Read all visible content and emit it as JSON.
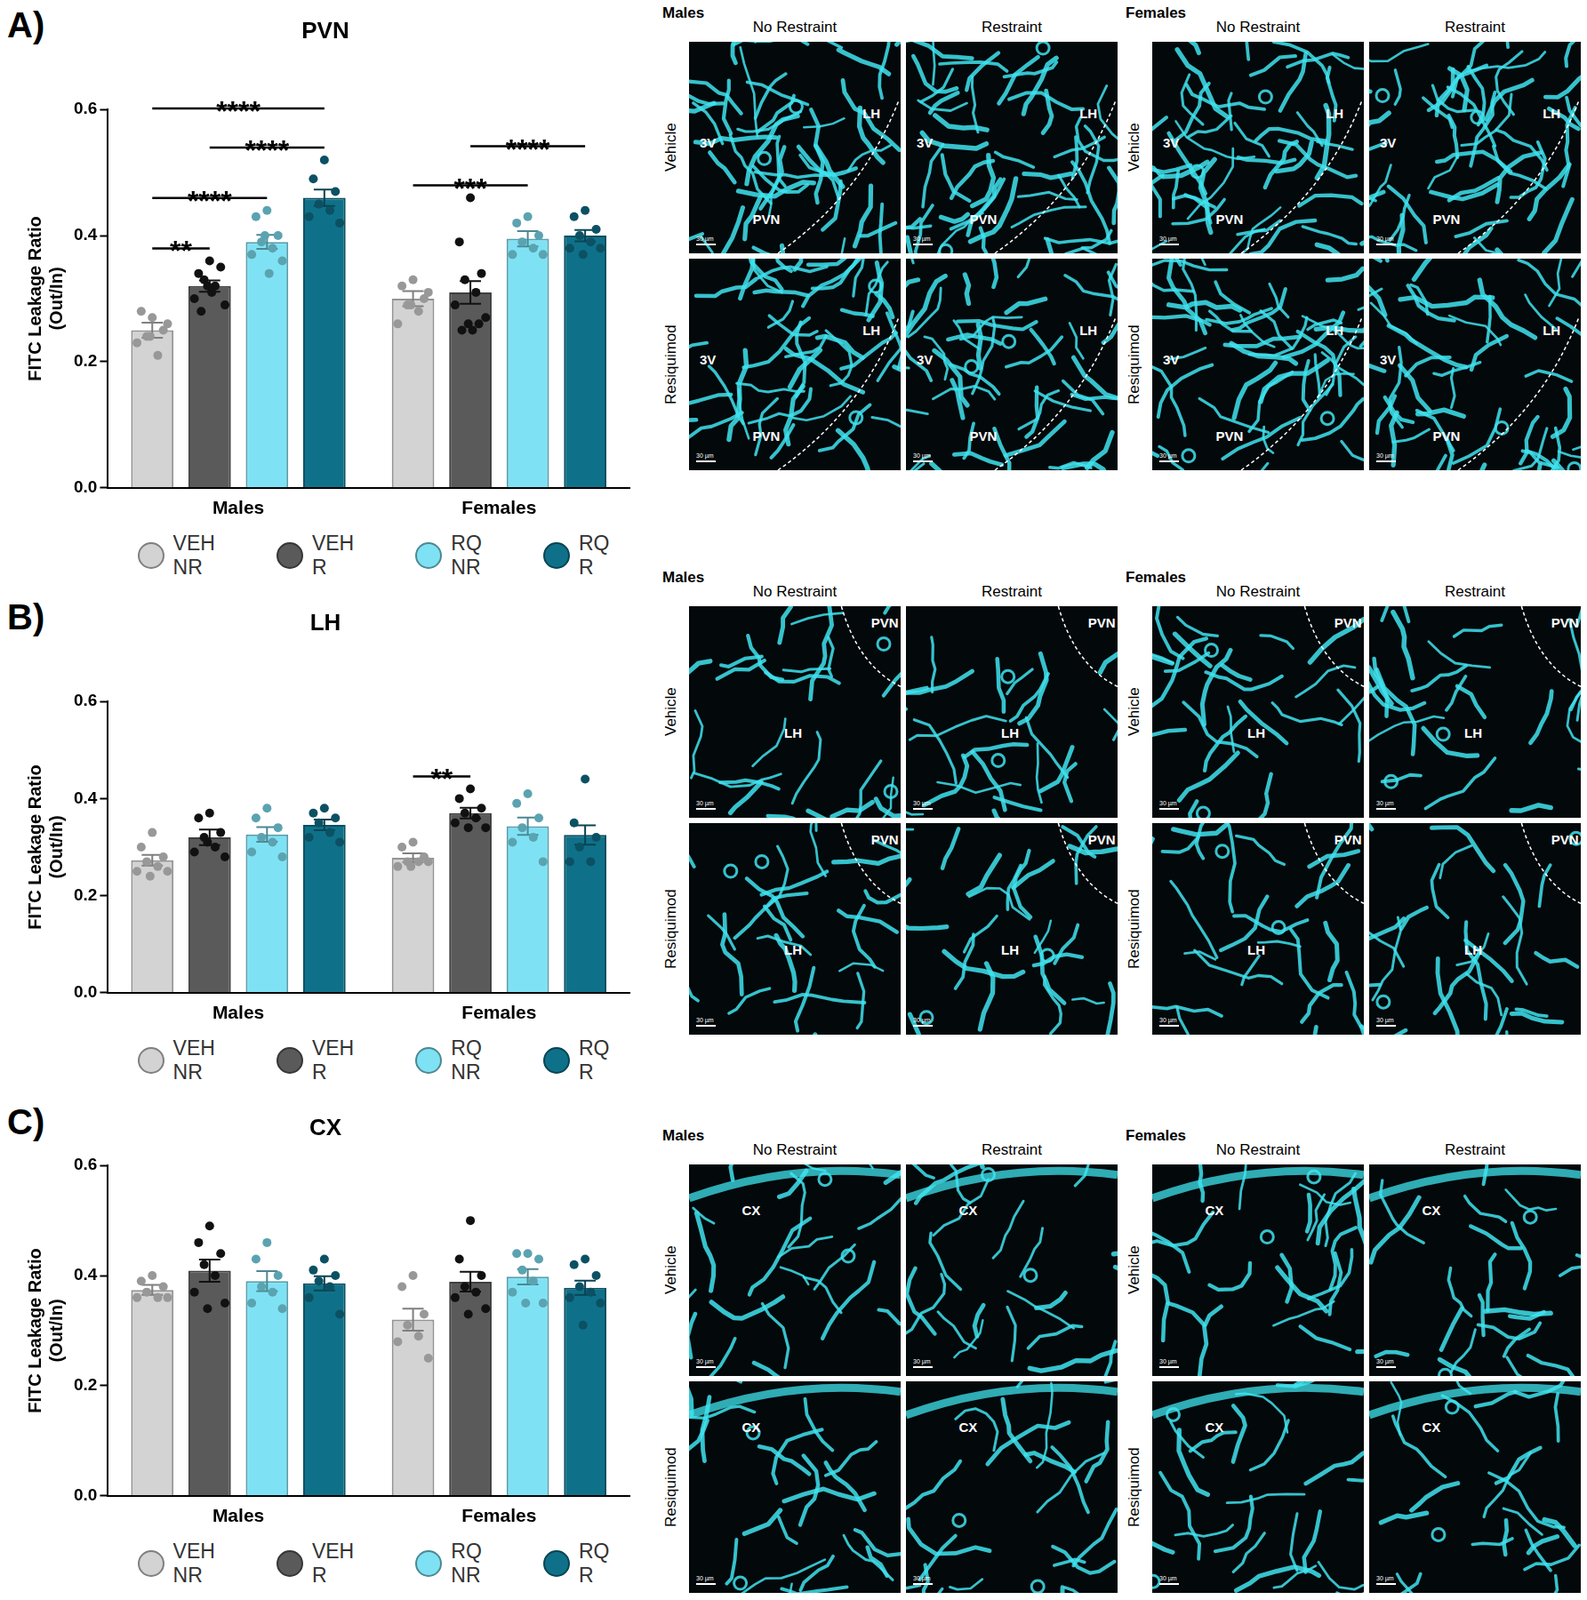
{
  "chart_data": [
    {
      "type": "bar",
      "panel_label": "A)",
      "title": "PVN",
      "y_label": [
        "FITC Leakage Ratio",
        "(Out/In)"
      ],
      "categories": [
        "Males",
        "Females"
      ],
      "ylim": [
        0,
        0.6
      ],
      "yticks": [
        {
          "value": 0,
          "label": "0.0"
        },
        0.2,
        0.4,
        0.6
      ],
      "grid": false,
      "legend": "bottom",
      "series": [
        {
          "name": "VEH NR",
          "color": "#d3d3d3",
          "values": [
            0.25,
            0.3
          ],
          "errors": [
            0.012,
            0.012
          ],
          "points": [
            [
              0.27,
              0.28,
              0.25,
              0.24,
              0.21,
              0.23,
              0.26,
              0.24
            ],
            [
              0.33,
              0.32,
              0.3,
              0.29,
              0.28,
              0.26,
              0.31,
              0.29
            ]
          ]
        },
        {
          "name": "VEH R",
          "color": "#5a5a5a",
          "values": [
            0.32,
            0.31
          ],
          "errors": [
            0.009,
            0.018
          ],
          "points": [
            [
              0.36,
              0.34,
              0.35,
              0.33,
              0.32,
              0.3,
              0.29,
              0.32,
              0.31,
              0.28
            ],
            [
              0.46,
              0.39,
              0.34,
              0.33,
              0.31,
              0.29,
              0.27,
              0.26,
              0.25,
              0.25,
              0.26
            ]
          ]
        },
        {
          "name": "RQ NR",
          "color": "#7fe2f4",
          "values": [
            0.39,
            0.395
          ],
          "errors": [
            0.011,
            0.012
          ],
          "points": [
            [
              0.44,
              0.43,
              0.4,
              0.39,
              0.38,
              0.37,
              0.36,
              0.4,
              0.34
            ],
            [
              0.43,
              0.42,
              0.4,
              0.39,
              0.38,
              0.37,
              0.37
            ]
          ]
        },
        {
          "name": "RQ R",
          "color": "#0f7189",
          "values": [
            0.46,
            0.4
          ],
          "errors": [
            0.013,
            0.009
          ],
          "points": [
            [
              0.52,
              0.49,
              0.47,
              0.45,
              0.44,
              0.43,
              0.42
            ],
            [
              0.44,
              0.43,
              0.41,
              0.4,
              0.39,
              0.38,
              0.38,
              0.37
            ]
          ]
        }
      ],
      "annotations": [
        {
          "category": "Males",
          "from": "VEH NR",
          "to": "VEH R",
          "label": "**"
        },
        {
          "category": "Males",
          "from": "VEH NR",
          "to": "RQ NR",
          "label": "****"
        },
        {
          "category": "Males",
          "from": "VEH R",
          "to": "RQ R",
          "label": "****"
        },
        {
          "category": "Males",
          "from": "VEH NR",
          "to": "RQ R",
          "label": "****"
        },
        {
          "category": "Females",
          "from": "VEH NR",
          "to": "RQ NR",
          "label": "***"
        },
        {
          "category": "Females",
          "from": "VEH R",
          "to": "RQ R",
          "label": "****"
        }
      ]
    },
    {
      "type": "bar",
      "panel_label": "B)",
      "title": "LH",
      "y_label": [
        "FITC Leakage Ratio",
        "(Out/In)"
      ],
      "categories": [
        "Males",
        "Females"
      ],
      "ylim": [
        0,
        0.6
      ],
      "yticks": [
        {
          "value": 0,
          "label": "0.0"
        },
        0.2,
        0.4,
        0.6
      ],
      "grid": false,
      "legend": "bottom",
      "series": [
        {
          "name": "VEH NR",
          "color": "#d3d3d3",
          "values": [
            0.273,
            0.278
          ],
          "errors": [
            0.011,
            0.009
          ],
          "points": [
            [
              0.33,
              0.3,
              0.28,
              0.27,
              0.26,
              0.25,
              0.25,
              0.24
            ],
            [
              0.31,
              0.3,
              0.28,
              0.27,
              0.27,
              0.26,
              0.27,
              0.26
            ]
          ]
        },
        {
          "name": "VEH R",
          "color": "#5a5a5a",
          "values": [
            0.32,
            0.37
          ],
          "errors": [
            0.016,
            0.011
          ],
          "points": [
            [
              0.37,
              0.36,
              0.33,
              0.32,
              0.3,
              0.29,
              0.28,
              0.31
            ],
            [
              0.42,
              0.4,
              0.38,
              0.37,
              0.36,
              0.35,
              0.34,
              0.34
            ]
          ]
        },
        {
          "name": "RQ NR",
          "color": "#7fe2f4",
          "values": [
            0.326,
            0.343
          ],
          "errors": [
            0.015,
            0.018
          ],
          "points": [
            [
              0.38,
              0.36,
              0.34,
              0.32,
              0.31,
              0.29,
              0.28
            ],
            [
              0.41,
              0.39,
              0.36,
              0.34,
              0.32,
              0.31,
              0.27
            ]
          ]
        },
        {
          "name": "RQ R",
          "color": "#0f7189",
          "values": [
            0.346,
            0.325
          ],
          "errors": [
            0.011,
            0.02
          ],
          "points": [
            [
              0.38,
              0.37,
              0.36,
              0.35,
              0.33,
              0.32,
              0.31
            ],
            [
              0.44,
              0.35,
              0.32,
              0.3,
              0.27,
              0.27
            ]
          ]
        }
      ],
      "annotations": [
        {
          "category": "Females",
          "from": "VEH NR",
          "to": "VEH R",
          "label": "**"
        }
      ]
    },
    {
      "type": "bar",
      "panel_label": "C)",
      "title": "CX",
      "y_label": [
        "FITC Leakage Ratio",
        "(Out/In)"
      ],
      "categories": [
        "Males",
        "Females"
      ],
      "ylim": [
        0,
        0.6
      ],
      "yticks": [
        {
          "value": 0,
          "label": "0.0"
        },
        0.2,
        0.4,
        0.6
      ],
      "grid": false,
      "legend": "bottom",
      "series": [
        {
          "name": "VEH NR",
          "color": "#d3d3d3",
          "values": [
            0.374,
            0.32
          ],
          "errors": [
            0.009,
            0.02
          ],
          "points": [
            [
              0.4,
              0.39,
              0.38,
              0.37,
              0.36,
              0.36,
              0.36
            ],
            [
              0.4,
              0.38,
              0.33,
              0.31,
              0.29,
              0.28,
              0.25
            ]
          ]
        },
        {
          "name": "VEH R",
          "color": "#5a5a5a",
          "values": [
            0.409,
            0.389
          ],
          "errors": [
            0.02,
            0.018
          ],
          "points": [
            [
              0.49,
              0.46,
              0.44,
              0.42,
              0.4,
              0.37,
              0.35,
              0.34
            ],
            [
              0.5,
              0.43,
              0.4,
              0.38,
              0.37,
              0.36,
              0.34,
              0.33
            ]
          ]
        },
        {
          "name": "RQ NR",
          "color": "#7fe2f4",
          "values": [
            0.39,
            0.398
          ],
          "errors": [
            0.018,
            0.014
          ],
          "points": [
            [
              0.46,
              0.43,
              0.4,
              0.38,
              0.37,
              0.35,
              0.34
            ],
            [
              0.44,
              0.44,
              0.43,
              0.41,
              0.39,
              0.37,
              0.35,
              0.35
            ]
          ]
        },
        {
          "name": "RQ R",
          "color": "#0f7189",
          "values": [
            0.386,
            0.378
          ],
          "errors": [
            0.013,
            0.013
          ],
          "points": [
            [
              0.43,
              0.41,
              0.4,
              0.39,
              0.38,
              0.36,
              0.33
            ],
            [
              0.43,
              0.42,
              0.4,
              0.38,
              0.37,
              0.36,
              0.35,
              0.31
            ]
          ]
        }
      ],
      "annotations": []
    }
  ],
  "image_figures": [
    {
      "groups": [
        {
          "title": "Males",
          "columns": [
            "No Restraint",
            "Restraint"
          ],
          "rows": [
            "Vehicle",
            "Resiquimod"
          ]
        },
        {
          "title": "Females",
          "columns": [
            "No Restraint",
            "Restraint"
          ],
          "rows": [
            "Vehicle",
            "Resiquimod"
          ]
        }
      ],
      "region_labels": [
        "3V",
        "PVN",
        "LH"
      ],
      "scale_bar": "30 µm"
    },
    {
      "groups": [
        {
          "title": "Males",
          "columns": [
            "No Restraint",
            "Restraint"
          ],
          "rows": [
            "Vehicle",
            "Resiquimod"
          ]
        },
        {
          "title": "Females",
          "columns": [
            "No Restraint",
            "Restraint"
          ],
          "rows": [
            "Vehicle",
            "Resiquimod"
          ]
        }
      ],
      "region_labels": [
        "PVN",
        "LH"
      ],
      "scale_bar": "30 µm"
    },
    {
      "groups": [
        {
          "title": "Males",
          "columns": [
            "No Restraint",
            "Restraint"
          ],
          "rows": [
            "Vehicle",
            "Resiquimod"
          ]
        },
        {
          "title": "Females",
          "columns": [
            "No Restraint",
            "Restraint"
          ],
          "rows": [
            "Vehicle",
            "Resiquimod"
          ]
        }
      ],
      "region_labels": [
        "CX"
      ],
      "scale_bar": "30 µm"
    }
  ]
}
